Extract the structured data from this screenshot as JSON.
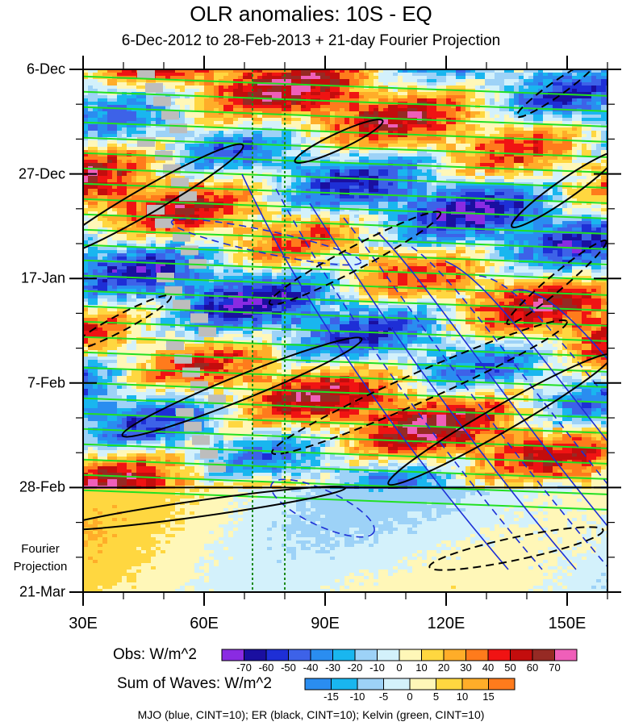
{
  "title": "OLR anomalies: 10S - EQ",
  "subtitle": "6-Dec-2012 to 28-Feb-2013 + 21-day Fourier Projection",
  "footer": "MJO (blue, CINT=10); ER (black, CINT=10); Kelvin (green, CINT=10)",
  "projection_label_line1": "Fourier",
  "projection_label_line2": "Projection",
  "chart_data": {
    "type": "heatmap",
    "title": "OLR anomalies: 10S - EQ",
    "subtitle": "6-Dec-2012 to 28-Feb-2013 + 21-day Fourier Projection",
    "x_axis": {
      "ticks": [
        30,
        60,
        90,
        120,
        150
      ],
      "tick_labels": [
        "30E",
        "60E",
        "90E",
        "120E",
        "150E"
      ],
      "range": [
        30,
        160
      ]
    },
    "y_axis": {
      "tick_labels": [
        "6-Dec",
        "27-Dec",
        "17-Jan",
        "7-Feb",
        "28-Feb",
        "21-Mar"
      ],
      "range": [
        "6-Dec-2012",
        "21-Mar-2013"
      ],
      "direction": "top-to-bottom"
    },
    "observed_end": "28-Feb",
    "projection_label": "Fourier Projection",
    "reference_longitudes": [
      72,
      80
    ],
    "legend_obs": {
      "label": "Obs: W/m^2",
      "levels": [
        -70,
        -60,
        -50,
        -40,
        -30,
        -20,
        -10,
        0,
        10,
        20,
        30,
        40,
        50,
        60,
        70
      ],
      "colors": [
        "#8a2be2",
        "#1a0fa0",
        "#1e2fd6",
        "#3d62e8",
        "#2a8df0",
        "#19b6ef",
        "#9dd2f7",
        "#d3f1fb",
        "#fff7b8",
        "#ffd740",
        "#ffad29",
        "#ff7b1c",
        "#f01313",
        "#c30d0d",
        "#962a24",
        "#ef5fb9"
      ]
    },
    "legend_waves": {
      "label": "Sum of Waves: W/m^2",
      "levels": [
        -15,
        -10,
        -5,
        0,
        5,
        10,
        15
      ],
      "colors": [
        "#2a8df0",
        "#19b6ef",
        "#9dd2f7",
        "#d3f1fb",
        "#fff7b8",
        "#ffd740",
        "#ffad29",
        "#ff7b1c"
      ]
    },
    "contours": [
      {
        "name": "MJO",
        "color": "#1c2fd6",
        "cint": 10
      },
      {
        "name": "ER",
        "color": "#000000",
        "cint": 10
      },
      {
        "name": "Kelvin",
        "color": "#22e022",
        "cint": 10
      }
    ]
  }
}
